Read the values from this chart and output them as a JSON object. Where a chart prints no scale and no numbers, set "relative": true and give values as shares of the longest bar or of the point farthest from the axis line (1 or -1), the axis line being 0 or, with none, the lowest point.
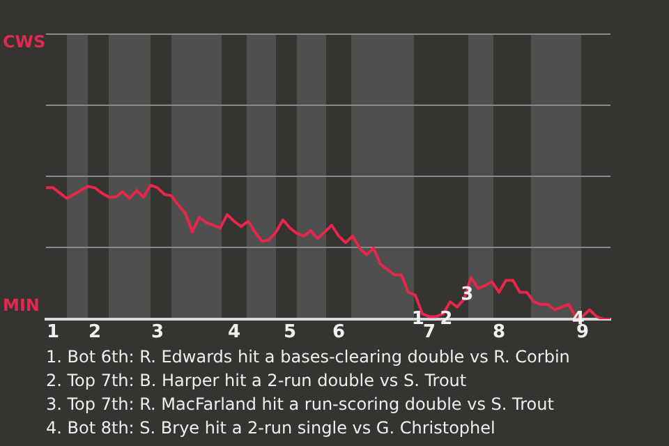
{
  "chart_data": {
    "type": "line",
    "relative": true,
    "categories": [
      null,
      "1",
      null,
      null,
      null,
      null,
      null,
      "2",
      null,
      null,
      null,
      null,
      null,
      null,
      null,
      null,
      "3",
      null,
      null,
      null,
      null,
      null,
      null,
      null,
      null,
      null,
      null,
      "4",
      null,
      null,
      null,
      null,
      null,
      null,
      null,
      "5",
      null,
      null,
      null,
      null,
      null,
      null,
      "6",
      null,
      null,
      null,
      null,
      null,
      null,
      null,
      null,
      null,
      null,
      null,
      null,
      "7",
      null,
      null,
      null,
      null,
      null,
      null,
      null,
      null,
      null,
      "8",
      null,
      null,
      null,
      null,
      null,
      null,
      null,
      null,
      null,
      null,
      null,
      "9",
      null,
      null,
      null,
      null
    ],
    "series": [
      {
        "color": "#e8264a",
        "values": [
          0.98,
          0.98,
          0.94,
          0.9,
          0.93,
          0.96,
          0.99,
          0.98,
          0.94,
          0.91,
          0.91,
          0.95,
          0.9,
          0.96,
          0.91,
          1,
          0.98,
          0.93,
          0.92,
          0.85,
          0.79,
          0.65,
          0.76,
          0.72,
          0.7,
          0.68,
          0.78,
          0.73,
          0.69,
          0.73,
          0.65,
          0.58,
          0.59,
          0.65,
          0.74,
          0.68,
          0.64,
          0.62,
          0.66,
          0.6,
          0.65,
          0.7,
          0.62,
          0.57,
          0.62,
          0.53,
          0.48,
          0.53,
          0.41,
          0.37,
          0.33,
          0.33,
          0.2,
          0.18,
          0.04,
          0.02,
          0.02,
          0.04,
          0.13,
          0.09,
          0.15,
          0.31,
          0.23,
          0.25,
          0.28,
          0.2,
          0.29,
          0.29,
          0.2,
          0.2,
          0.13,
          0.11,
          0.11,
          0.07,
          0.09,
          0.11,
          0.02,
          0.02,
          0.07,
          0.02,
          0,
          0
        ]
      }
    ],
    "marker": "none",
    "line_style": "solid",
    "ref_lines": [
      {
        "axis": "y",
        "value": 0.54,
        "color": "#8a8a8a"
      },
      {
        "axis": "y",
        "value": 1.07,
        "color": "#8a8a8a"
      },
      {
        "axis": "y",
        "value": 1.6,
        "color": "#8a8a8a"
      },
      {
        "axis": "y",
        "value": 2.13,
        "color": "#8a8a8a"
      }
    ],
    "annotations": [
      "CWS",
      "MIN",
      {
        "text": "1",
        "y": 0
      },
      {
        "text": "2",
        "y": 0
      },
      {
        "text": "3",
        "y": 0.18
      },
      {
        "text": "4",
        "y": 0
      },
      "1. Bot 6th: R. Edwards hit a bases-clearing double vs R. Corbin",
      "2. Top 7th: B. Harper hit a 2-run double vs S. Trout",
      "3. Top 7th: R. MacFarland hit a run-scoring double vs S. Trout",
      "4. Bot 8th: S. Brye hit a 2-run single vs G. Christophel"
    ]
  }
}
